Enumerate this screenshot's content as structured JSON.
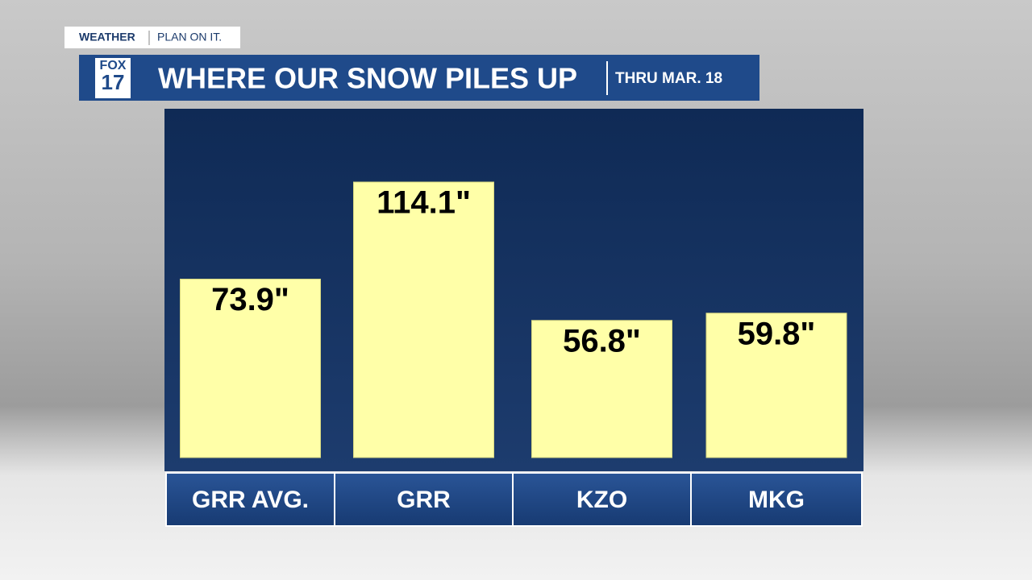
{
  "brand": {
    "section": "WEATHER",
    "slogan": "PLAN ON IT.",
    "logo_top": "FOX",
    "logo_bottom": "17"
  },
  "chart_data": {
    "type": "bar",
    "title": "WHERE OUR SNOW PILES UP",
    "subtitle": "THRU MAR. 18",
    "categories": [
      "GRR AVG.",
      "GRR",
      "KZO",
      "MKG"
    ],
    "values": [
      73.9,
      114.1,
      56.8,
      59.8
    ],
    "value_labels": [
      "73.9\"",
      "114.1\"",
      "56.8\"",
      "59.8\""
    ],
    "color": "#ffffa8"
  }
}
